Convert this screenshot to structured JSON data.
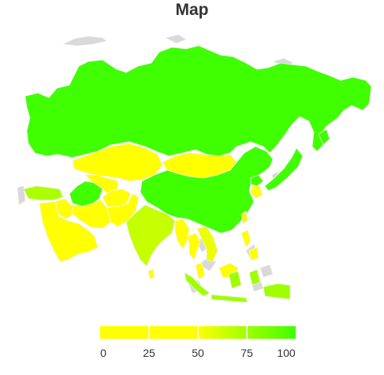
{
  "map": {
    "title": "Map"
  },
  "legend": {
    "min": 0,
    "max": 100,
    "ticks": [
      "0",
      "25",
      "50",
      "75",
      "100"
    ],
    "colors": {
      "low": "#ffff00",
      "high": "#3fff00",
      "no_data": "#d9d9d9",
      "border": "#f2f2f2"
    }
  },
  "regions": [
    {
      "id": "russia",
      "value": 100
    },
    {
      "id": "china",
      "value": 100
    },
    {
      "id": "japan",
      "value": 100
    },
    {
      "id": "turkmenistan",
      "value": 100
    },
    {
      "id": "north-korea",
      "value": 100
    },
    {
      "id": "kazakhstan",
      "value": 10
    },
    {
      "id": "mongolia",
      "value": 5
    },
    {
      "id": "uzbekistan",
      "value": 12
    },
    {
      "id": "afghanistan",
      "value": 12
    },
    {
      "id": "pakistan",
      "value": 15
    },
    {
      "id": "iran",
      "value": 20
    },
    {
      "id": "saudi-arabia",
      "value": 12
    },
    {
      "id": "iraq",
      "value": 25
    },
    {
      "id": "turkey",
      "value": 72
    },
    {
      "id": "india",
      "value": 65
    },
    {
      "id": "myanmar",
      "value": 30
    },
    {
      "id": "thailand",
      "value": 30
    },
    {
      "id": "vietnam",
      "value": 55
    },
    {
      "id": "south-korea",
      "value": 10
    },
    {
      "id": "philippines",
      "value": 40
    },
    {
      "id": "malaysia",
      "value": 45
    },
    {
      "id": "indonesia",
      "value": 75
    },
    {
      "id": "sri-lanka",
      "value": 45
    },
    {
      "id": "taiwan",
      "value": 55
    }
  ]
}
